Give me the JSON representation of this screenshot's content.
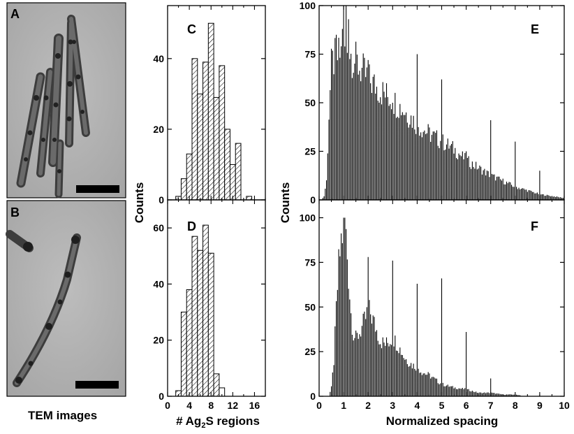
{
  "figure": {
    "tem_caption": "TEM images",
    "left_ylabel": "Counts",
    "left_xlabel_main": "# Ag",
    "left_xlabel_sub": "2",
    "left_xlabel_end": "S regions",
    "right_ylabel": "Counts",
    "right_xlabel": "Normalized spacing"
  },
  "tem_panels": [
    {
      "letter": "A",
      "scale_bar": true
    },
    {
      "letter": "B",
      "scale_bar": true
    }
  ],
  "chart_data": [
    {
      "id": "C",
      "panel_label": "C",
      "type": "bar",
      "bin_width": 1,
      "x": [
        2,
        3,
        4,
        5,
        6,
        7,
        8,
        9,
        10,
        11,
        12,
        13,
        14,
        15
      ],
      "values": [
        1,
        6,
        13,
        40,
        30,
        39,
        50,
        29,
        38,
        20,
        10,
        16,
        0,
        1
      ],
      "xlim": [
        0,
        18
      ],
      "ylim": [
        0,
        55
      ],
      "xticks": [
        0,
        4,
        8,
        12,
        16
      ],
      "yticks": [
        0,
        20,
        40
      ]
    },
    {
      "id": "D",
      "panel_label": "D",
      "type": "bar",
      "bin_width": 1,
      "x": [
        2,
        3,
        4,
        5,
        6,
        7,
        8,
        9
      ],
      "values": [
        2,
        30,
        38,
        57,
        52,
        61,
        51,
        8
      ],
      "x_partial": [
        10
      ],
      "values_partial": [
        3
      ],
      "xlim": [
        0,
        18
      ],
      "ylim": [
        0,
        70
      ],
      "xticks": [
        0,
        4,
        8,
        12,
        16
      ],
      "xtick_labels": [
        "0",
        "4",
        "8",
        "12",
        "16"
      ],
      "yticks": [
        0,
        20,
        40,
        60
      ]
    },
    {
      "id": "E",
      "panel_label": "E",
      "type": "bar",
      "bin_width": 0.05,
      "xlim": [
        0,
        10
      ],
      "ylim": [
        0,
        100
      ],
      "yticks": [
        0,
        25,
        50,
        75,
        100
      ],
      "envelope": [
        [
          0.1,
          0
        ],
        [
          0.2,
          2
        ],
        [
          0.3,
          10
        ],
        [
          0.4,
          45
        ],
        [
          0.5,
          70
        ],
        [
          0.6,
          74
        ],
        [
          0.8,
          76
        ],
        [
          1.0,
          80
        ],
        [
          1.2,
          80
        ],
        [
          1.5,
          73
        ],
        [
          2.0,
          64
        ],
        [
          2.5,
          58
        ],
        [
          3.0,
          53
        ],
        [
          3.5,
          47
        ],
        [
          4.0,
          40
        ],
        [
          4.5,
          35
        ],
        [
          5.0,
          31
        ],
        [
          5.5,
          27
        ],
        [
          6.0,
          21
        ],
        [
          6.5,
          17
        ],
        [
          7.0,
          13
        ],
        [
          7.5,
          10
        ],
        [
          8.0,
          7
        ],
        [
          8.5,
          5
        ],
        [
          9.0,
          3
        ],
        [
          9.5,
          2
        ],
        [
          10.0,
          1
        ]
      ],
      "spikes": [
        [
          0.7,
          85
        ],
        [
          0.95,
          88
        ],
        [
          1.0,
          100
        ],
        [
          1.1,
          100
        ],
        [
          1.2,
          93
        ],
        [
          2.0,
          72
        ],
        [
          3.0,
          50
        ],
        [
          4.0,
          75
        ],
        [
          5.0,
          62
        ],
        [
          6.0,
          25
        ],
        [
          7.0,
          41
        ],
        [
          8.0,
          30
        ],
        [
          9.0,
          15
        ],
        [
          10.0,
          5
        ]
      ]
    },
    {
      "id": "F",
      "panel_label": "F",
      "type": "bar",
      "bin_width": 0.05,
      "xlim": [
        0,
        10
      ],
      "ylim": [
        0,
        110
      ],
      "xticks": [
        0,
        1,
        2,
        3,
        4,
        5,
        6,
        7,
        8,
        9,
        10
      ],
      "yticks": [
        0,
        25,
        50,
        75,
        100
      ],
      "envelope": [
        [
          0.4,
          0
        ],
        [
          0.5,
          5
        ],
        [
          0.6,
          20
        ],
        [
          0.7,
          50
        ],
        [
          0.8,
          75
        ],
        [
          0.9,
          90
        ],
        [
          1.0,
          97
        ],
        [
          1.1,
          92
        ],
        [
          1.2,
          70
        ],
        [
          1.3,
          48
        ],
        [
          1.4,
          36
        ],
        [
          1.5,
          33
        ],
        [
          1.7,
          38
        ],
        [
          1.9,
          45
        ],
        [
          2.0,
          50
        ],
        [
          2.1,
          48
        ],
        [
          2.3,
          40
        ],
        [
          2.5,
          32
        ],
        [
          2.7,
          30
        ],
        [
          2.9,
          32
        ],
        [
          3.0,
          34
        ],
        [
          3.2,
          30
        ],
        [
          3.5,
          22
        ],
        [
          3.8,
          18
        ],
        [
          4.0,
          17
        ],
        [
          4.2,
          14
        ],
        [
          4.5,
          12
        ],
        [
          5.0,
          7
        ],
        [
          5.5,
          5
        ],
        [
          6.0,
          4
        ],
        [
          6.5,
          2
        ],
        [
          7.0,
          2
        ],
        [
          7.5,
          1
        ],
        [
          8.0,
          1
        ],
        [
          8.5,
          0
        ]
      ],
      "spikes": [
        [
          1.0,
          100
        ],
        [
          1.05,
          100
        ],
        [
          2.0,
          78
        ],
        [
          3.0,
          76
        ],
        [
          4.0,
          63
        ],
        [
          5.0,
          66
        ],
        [
          6.0,
          36
        ],
        [
          7.0,
          10
        ],
        [
          9.0,
          1
        ]
      ]
    }
  ]
}
